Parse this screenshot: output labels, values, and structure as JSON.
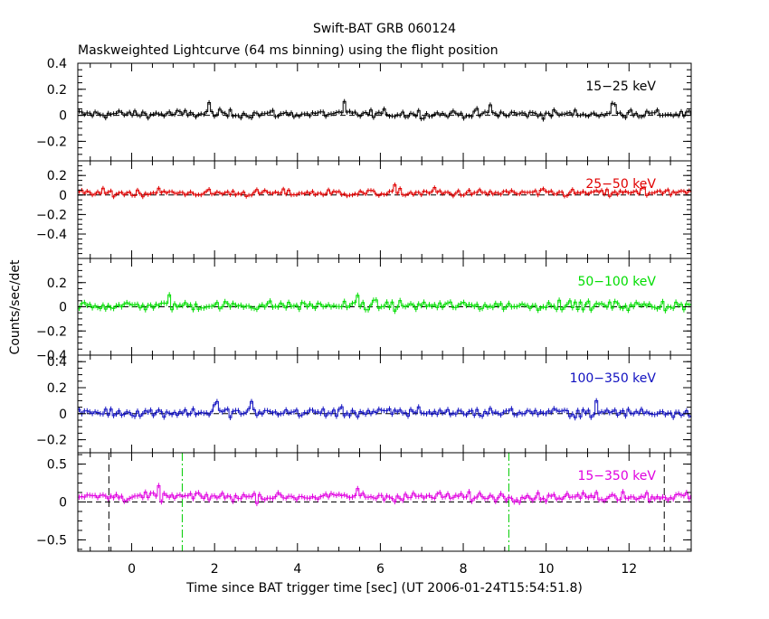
{
  "title": "Swift-BAT GRB 060124",
  "subtitle": "Maskweighted Lightcurve (64 ms binning) using the flight position",
  "xlabel": "Time since BAT trigger time [sec] (UT 2006-01-24T15:54:51.8)",
  "ylabel": "Counts/sec/det",
  "colors": {
    "band1": "#000000",
    "band2": "#e00000",
    "band3": "#00dd00",
    "band4": "#1010c0",
    "band5": "#e000e0",
    "vline_black": "#000000",
    "vline_green": "#00cc00"
  },
  "chart_data": {
    "type": "line",
    "subtype": "stacked binned lightcurve with error bars",
    "bin_width_sec": 0.064,
    "x_range": [
      -1.3,
      13.5
    ],
    "x_ticks": [
      0,
      2,
      4,
      6,
      8,
      10,
      12
    ],
    "x_tick_labels": [
      "0",
      "2",
      "4",
      "6",
      "8",
      "10",
      "12"
    ],
    "grid": false,
    "legend": "band label in top-right of each panel",
    "panels": [
      {
        "band": "15−25 keV",
        "ylim": [
          -0.35,
          0.4
        ],
        "yticks": [
          -0.2,
          0,
          0.2,
          0.4
        ],
        "ytick_labels": [
          "−0.2",
          "0",
          "0.2",
          "0.4"
        ],
        "mean": 0.01,
        "noise": 0.022,
        "err": 0.018,
        "spikes": [
          [
            1.85,
            0.09
          ],
          [
            5.1,
            0.08
          ],
          [
            8.6,
            0.07
          ],
          [
            11.6,
            0.07
          ],
          [
            12.0,
            0.06
          ]
        ]
      },
      {
        "band": "25−50 keV",
        "ylim": [
          -0.65,
          0.35
        ],
        "yticks": [
          -0.4,
          -0.2,
          0,
          0.2
        ],
        "ytick_labels": [
          "−0.4",
          "−0.2",
          "0",
          "0.2"
        ],
        "mean": 0.02,
        "noise": 0.026,
        "err": 0.022,
        "spikes": [
          [
            0.6,
            0.08
          ],
          [
            6.3,
            0.06
          ],
          [
            7.3,
            0.06
          ],
          [
            12.3,
            0.06
          ]
        ]
      },
      {
        "band": "50−100 keV",
        "ylim": [
          -0.4,
          0.4
        ],
        "yticks": [
          -0.4,
          -0.2,
          0,
          0.2
        ],
        "ytick_labels": [
          "−0.4",
          "−0.2",
          "0",
          "0.2"
        ],
        "mean": 0.01,
        "noise": 0.026,
        "err": 0.022,
        "spikes": [
          [
            0.9,
            0.08
          ],
          [
            5.4,
            0.09
          ],
          [
            10.3,
            0.07
          ]
        ]
      },
      {
        "band": "100−350 keV",
        "ylim": [
          -0.3,
          0.45
        ],
        "yticks": [
          -0.2,
          0,
          0.2,
          0.4
        ],
        "ytick_labels": [
          "−0.2",
          "0",
          "0.2",
          "0.4"
        ],
        "mean": 0.01,
        "noise": 0.024,
        "err": 0.02,
        "spikes": [
          [
            2.0,
            0.07
          ],
          [
            2.85,
            0.07
          ],
          [
            6.9,
            0.05
          ],
          [
            11.2,
            0.05
          ]
        ]
      },
      {
        "band": "15−350 keV",
        "ylim": [
          -0.65,
          0.65
        ],
        "yticks": [
          -0.5,
          0,
          0.5
        ],
        "ytick_labels": [
          "−0.5",
          "0",
          "0.5"
        ],
        "mean": 0.07,
        "noise": 0.04,
        "err": 0.035,
        "spikes": [
          [
            0.6,
            0.12
          ],
          [
            5.4,
            0.12
          ],
          [
            11.8,
            0.1
          ]
        ],
        "vlines": [
          {
            "x": -0.55,
            "color": "black",
            "style": "dashed"
          },
          {
            "x": 1.22,
            "color": "green",
            "style": "dashdot"
          },
          {
            "x": 9.1,
            "color": "green",
            "style": "dashdot"
          },
          {
            "x": 12.85,
            "color": "black",
            "style": "dashed"
          }
        ]
      }
    ]
  }
}
